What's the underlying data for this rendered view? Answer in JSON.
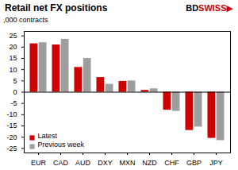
{
  "chart_data": {
    "type": "bar",
    "title": "Retail net FX positions",
    "ylabel": ",000 contracts",
    "categories": [
      "EUR",
      "CAD",
      "AUD",
      "DXY",
      "MXN",
      "NZD",
      "CHF",
      "GBP",
      "JPY"
    ],
    "series": [
      {
        "name": "Latest",
        "color": "#cc0000",
        "values": [
          21.5,
          21.0,
          11.0,
          6.5,
          4.8,
          0.8,
          -8.0,
          -17.0,
          -20.5
        ]
      },
      {
        "name": "Previous week",
        "color": "#9e9e9e",
        "values": [
          22.0,
          23.5,
          15.0,
          3.5,
          5.0,
          1.5,
          -8.5,
          -15.5,
          -21.5
        ]
      }
    ],
    "ylim": [
      -27,
      27
    ],
    "yticks": [
      -25,
      -20,
      -15,
      -10,
      -5,
      0,
      5,
      10,
      15,
      20,
      25
    ],
    "grid": false,
    "legend": "lower left",
    "annotations": [
      {
        "text": "BD"
      },
      {
        "text": "SWISS",
        "color": "#cc0000"
      },
      {
        "text": "▶",
        "color": "#cc0000"
      }
    ]
  }
}
